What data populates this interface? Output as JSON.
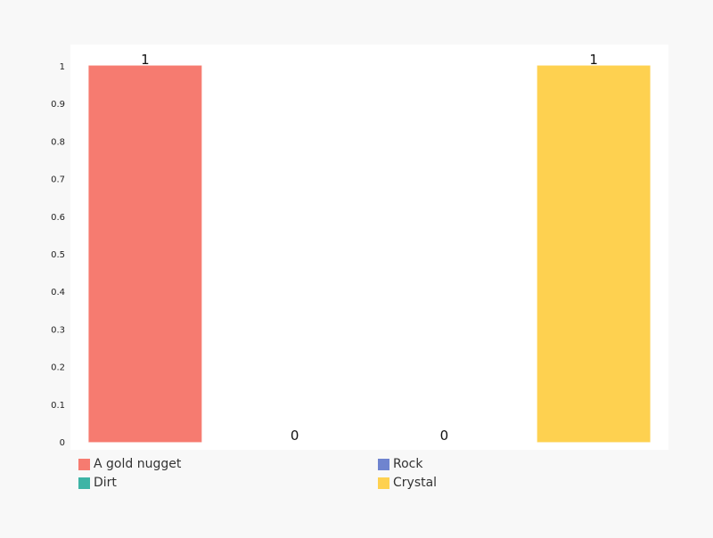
{
  "chart_data": {
    "type": "bar",
    "categories": [
      "A gold nugget",
      "Dirt",
      "Rock",
      "Crystal"
    ],
    "values": [
      1,
      0,
      0,
      1
    ],
    "data_labels": [
      "1",
      "0",
      "0",
      "1"
    ],
    "colors": [
      "#f67b70",
      "#3db4a5",
      "#6f84cf",
      "#fed150"
    ],
    "ylim": [
      0,
      1
    ],
    "yticks": [
      "0",
      "0.1",
      "0.2",
      "0.3",
      "0.4",
      "0.5",
      "0.6",
      "0.7",
      "0.8",
      "0.9",
      "1"
    ],
    "grid": false,
    "legend_position": "bottom",
    "title": "",
    "xlabel": "",
    "ylabel": ""
  }
}
